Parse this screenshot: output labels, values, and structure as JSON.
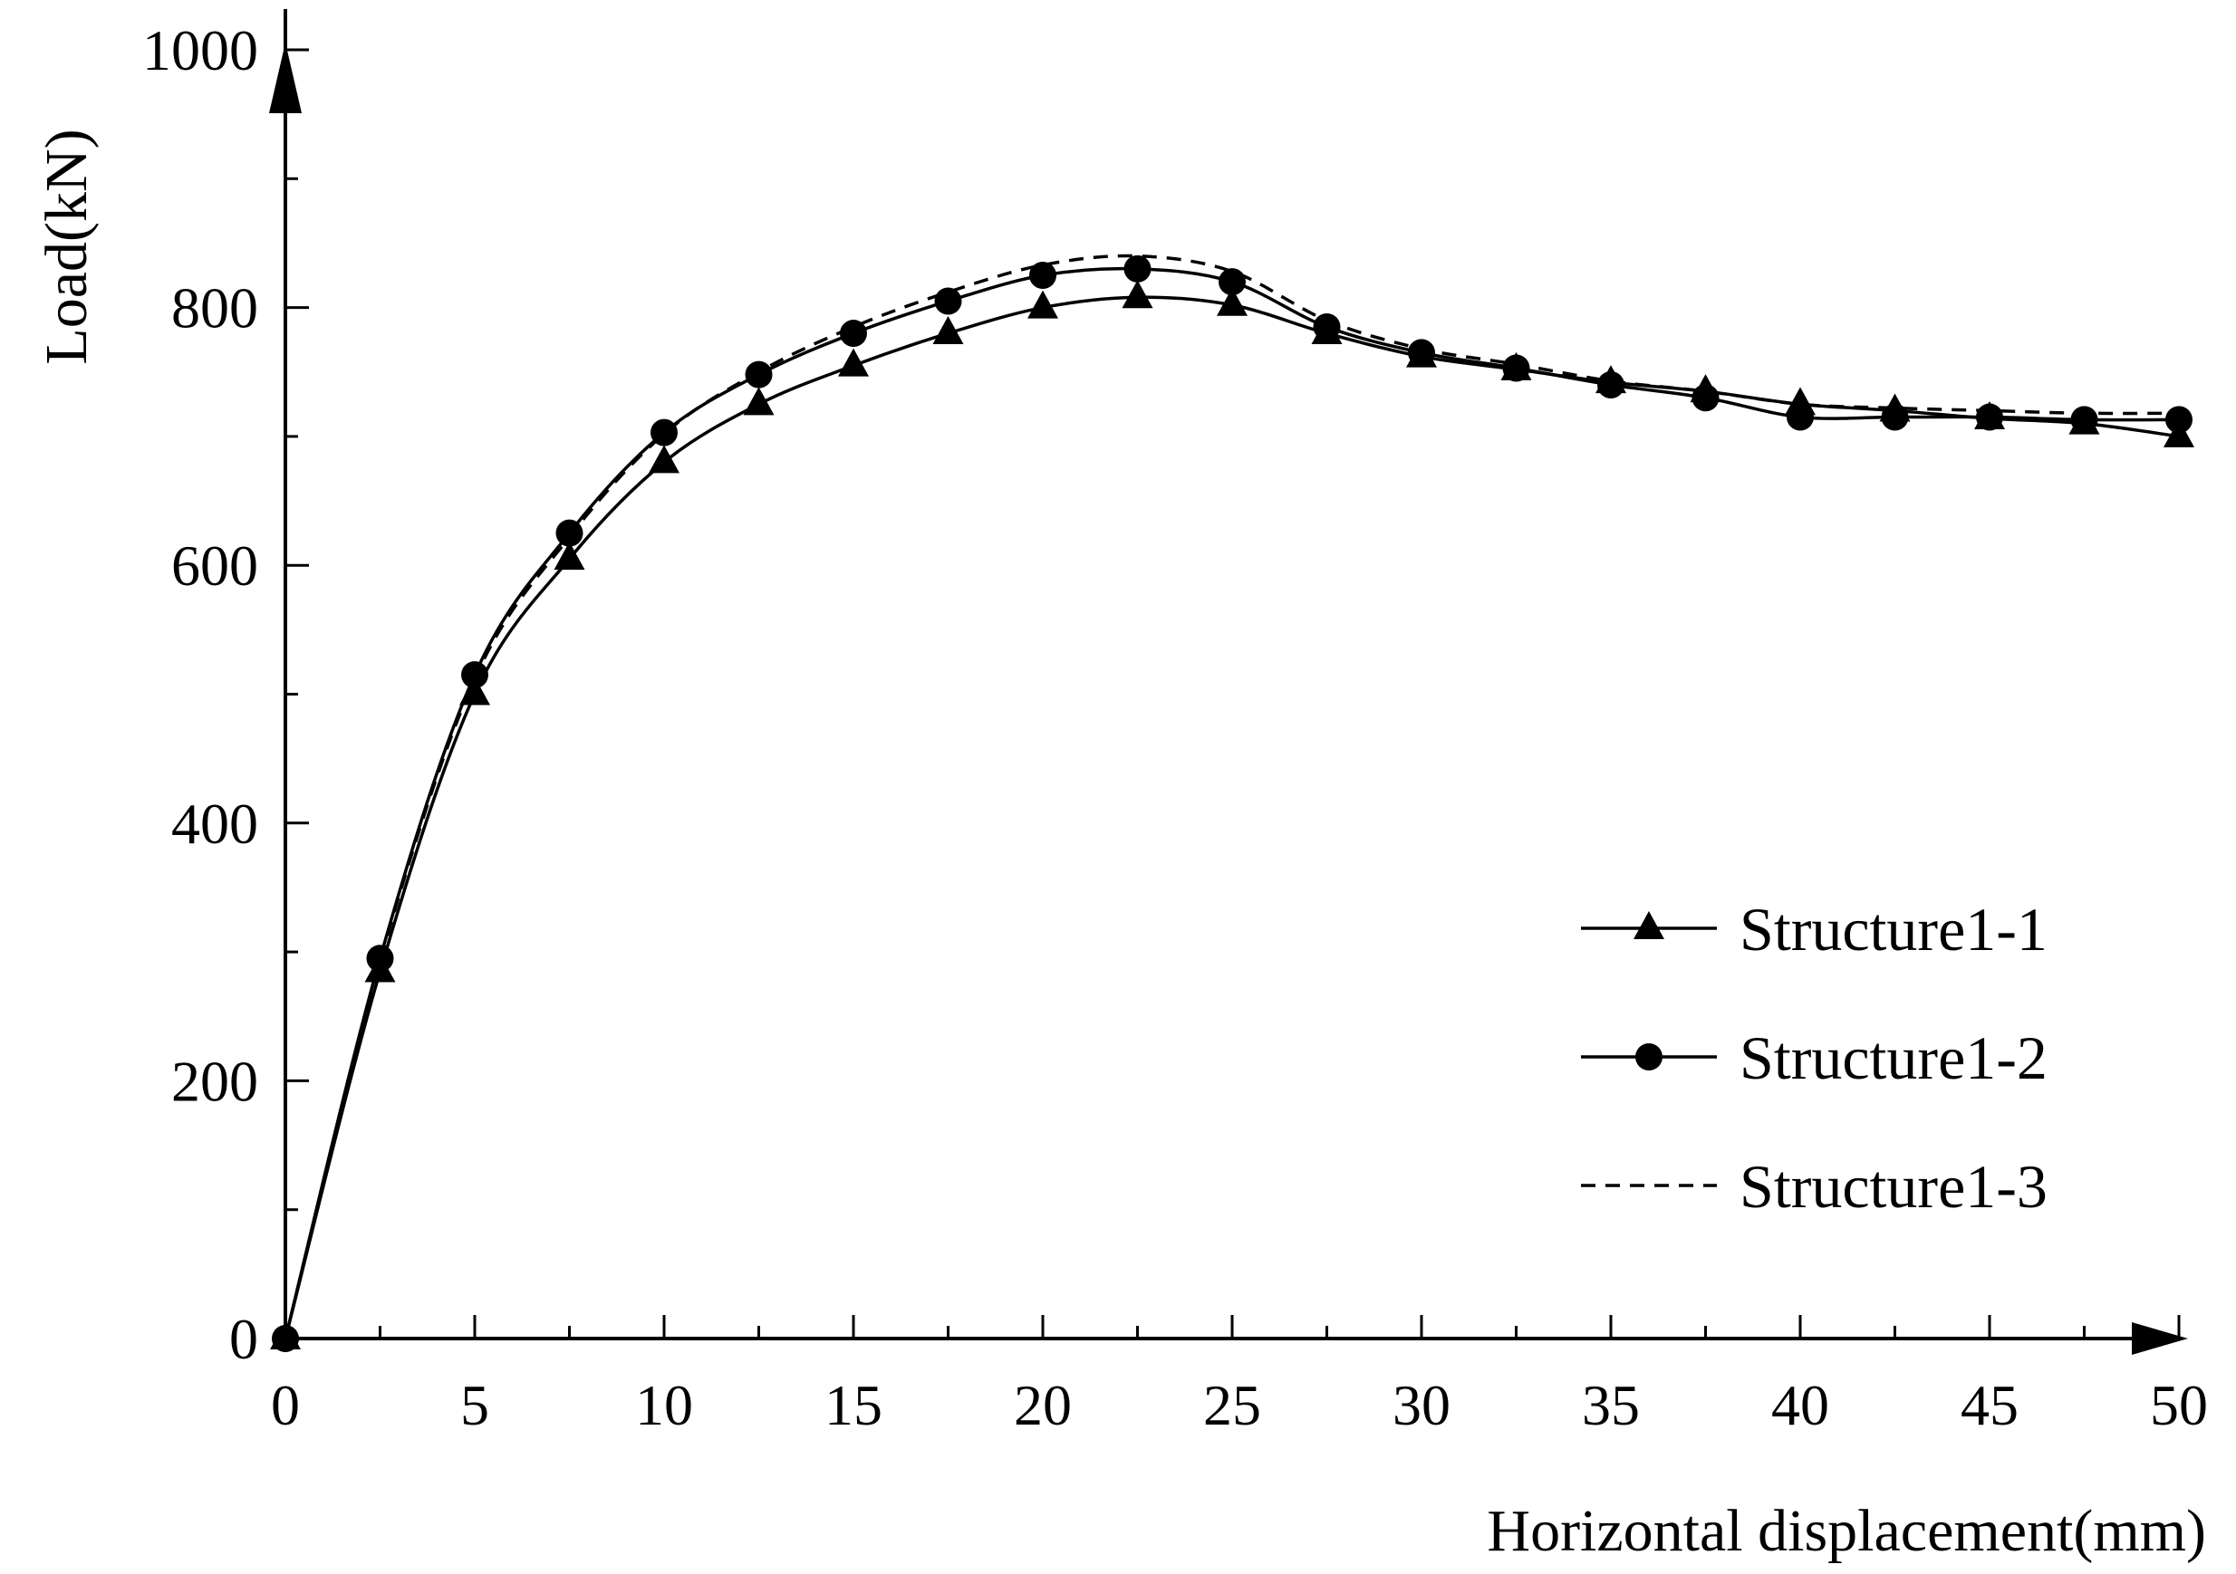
{
  "chart_data": {
    "type": "line",
    "xlabel": "Horizontal displacement(mm)",
    "ylabel": "Load(kN)",
    "xlim": [
      0,
      50
    ],
    "ylim": [
      0,
      1000
    ],
    "xticks": [
      0,
      5,
      10,
      15,
      20,
      25,
      30,
      35,
      40,
      45,
      50
    ],
    "yticks": [
      0,
      200,
      400,
      600,
      800,
      1000
    ],
    "x_minor_step": 2.5,
    "y_minor_step": 100,
    "grid": false,
    "legend_position": "bottom-right",
    "x": [
      0,
      2.5,
      5,
      7.5,
      10,
      12.5,
      15,
      17.5,
      20,
      22.5,
      25,
      27.5,
      30,
      32.5,
      35,
      37.5,
      40,
      42.5,
      45,
      47.5,
      50
    ],
    "series": [
      {
        "name": "Structure1-1",
        "marker": "triangle",
        "linestyle": "solid",
        "values": [
          0,
          285,
          500,
          605,
          680,
          725,
          755,
          780,
          800,
          808,
          802,
          780,
          762,
          752,
          742,
          735,
          725,
          720,
          714,
          710,
          700
        ]
      },
      {
        "name": "Structure1-2",
        "marker": "circle",
        "linestyle": "solid",
        "values": [
          0,
          295,
          515,
          625,
          703,
          748,
          780,
          805,
          825,
          830,
          820,
          785,
          765,
          753,
          740,
          730,
          715,
          715,
          715,
          713,
          713
        ]
      },
      {
        "name": "Structure1-3",
        "marker": "none",
        "linestyle": "dashed",
        "values": [
          0,
          293,
          512,
          622,
          702,
          750,
          785,
          812,
          833,
          840,
          828,
          790,
          768,
          756,
          743,
          735,
          725,
          722,
          720,
          718,
          718
        ]
      }
    ]
  }
}
